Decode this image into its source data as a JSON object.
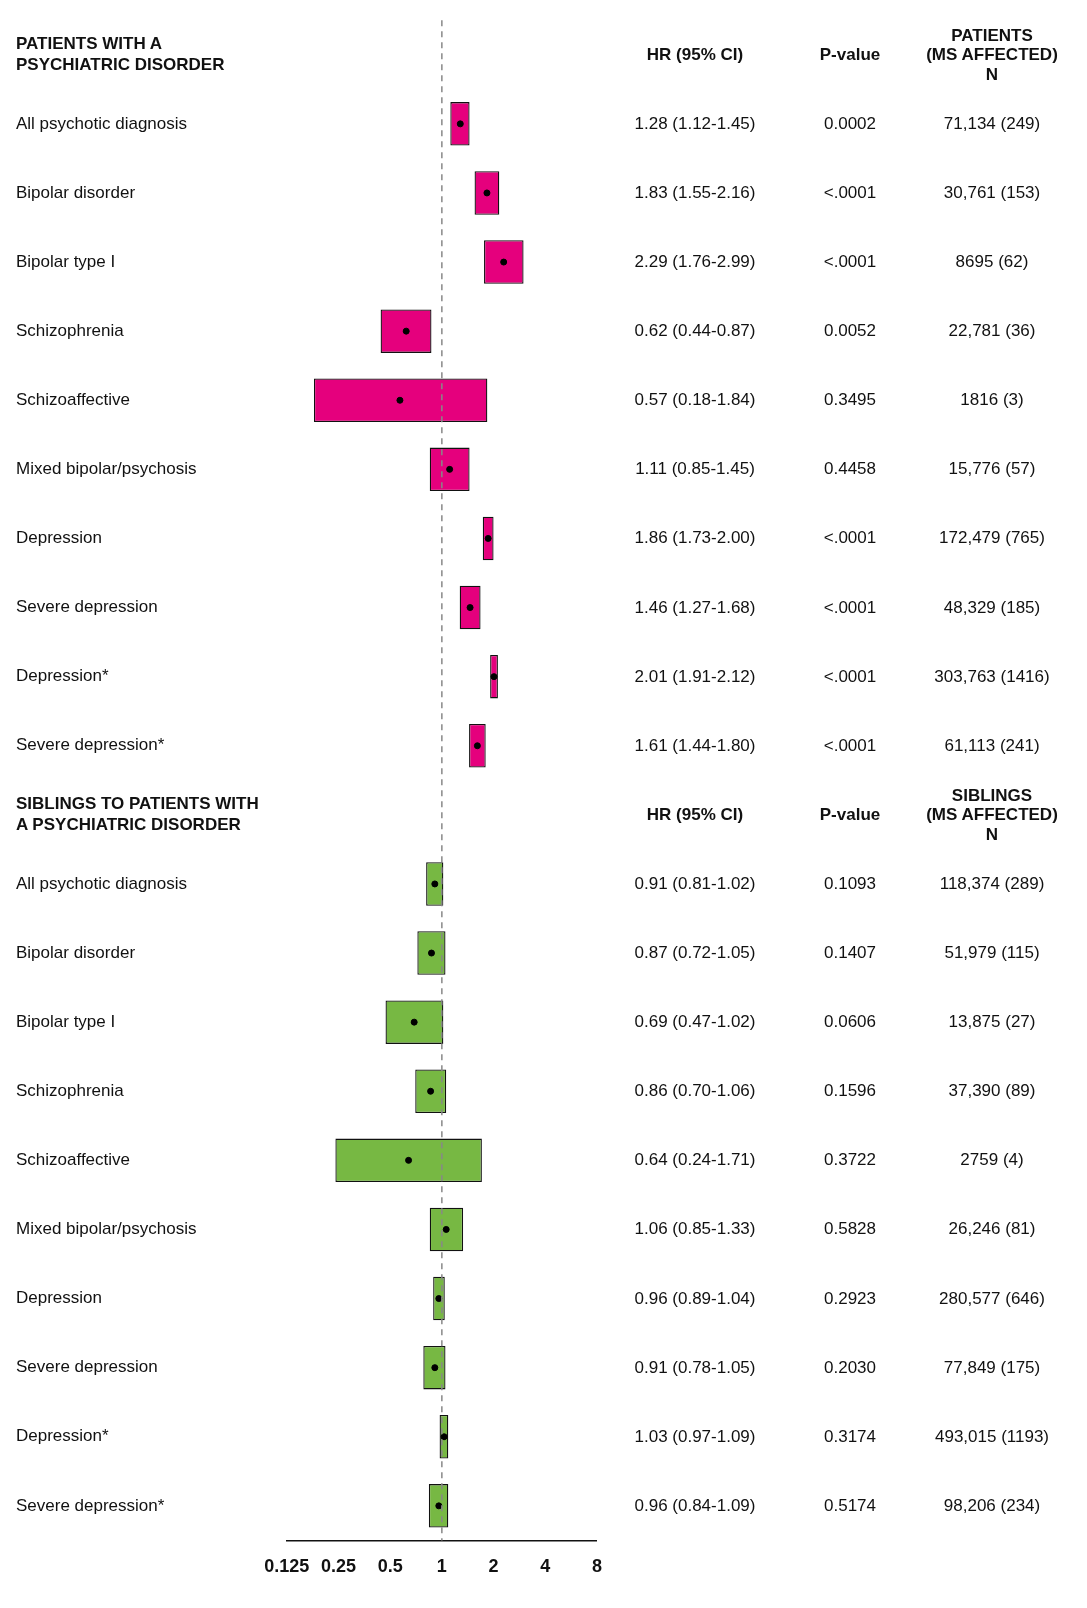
{
  "chart_data": [
    {
      "type": "bar",
      "orientation": "horizontal",
      "log": "x",
      "categories": [
        "PATIENTS WITH A PSYCHIATRIC DISORDER",
        "All psychotic diagnosis",
        "Bipolar disorder",
        "Bipolar type I",
        "Schizophrenia",
        "Schizoaffective",
        "Mixed bipolar/psychosis",
        "Depression",
        "Severe depression",
        "Depression*",
        "Severe depression*",
        "SIBLINGS TO PATIENTS WITH A PSYCHIATRIC DISORDER",
        "All psychotic diagnosis",
        "Bipolar disorder",
        "Bipolar type I",
        "Schizophrenia",
        "Schizoaffective",
        "Mixed bipolar/psychosis",
        "Depression",
        "Severe depression",
        "Depression*",
        "Severe depression*"
      ],
      "series": [
        {
          "type": "bar",
          "colors": [
            null,
            "#e5007d",
            "#e5007d",
            "#e5007d",
            "#e5007d",
            "#e5007d",
            "#e5007d",
            "#e5007d",
            "#e5007d",
            "#e5007d",
            "#e5007d",
            null,
            "#77b843",
            "#77b843",
            "#77b843",
            "#77b843",
            "#77b843",
            "#77b843",
            "#77b843",
            "#77b843",
            "#77b843",
            "#77b843"
          ],
          "base": [
            null,
            1.12,
            1.55,
            1.76,
            0.44,
            0.18,
            0.85,
            1.73,
            1.27,
            1.91,
            1.44,
            null,
            0.81,
            0.72,
            0.47,
            0.7,
            0.24,
            0.85,
            0.89,
            0.78,
            0.97,
            0.84
          ],
          "values": [
            null,
            0.33,
            0.61,
            1.23,
            0.43,
            1.66,
            0.6,
            0.27,
            0.41,
            0.21,
            0.36,
            null,
            0.21,
            0.33,
            0.55,
            0.36,
            1.47,
            0.48,
            0.15,
            0.27,
            0.12,
            0.25
          ]
        },
        {
          "type": "scatter",
          "color": "#000000",
          "marker": "circle",
          "values": [
            null,
            1.28,
            1.83,
            2.29,
            0.62,
            0.57,
            1.11,
            1.86,
            1.46,
            2.01,
            1.61,
            null,
            0.91,
            0.87,
            0.69,
            0.86,
            0.64,
            1.06,
            0.96,
            0.91,
            1.03,
            0.96
          ]
        }
      ],
      "xlim": [
        0.125,
        8
      ],
      "xticks": [
        0.125,
        0.25,
        0.5,
        1,
        2,
        4,
        8
      ],
      "grid": false,
      "legend": false,
      "ref_lines": [
        {
          "axis": "x",
          "value": 1,
          "color": "#888888",
          "line_style": "dashed"
        }
      ]
    },
    {
      "type": "other",
      "cell_labels": [
        [
          "HR (95% CI)",
          "P-value",
          "PATIENTS\n(MS AFFECTED)\nN"
        ],
        [
          "1.28 (1.12-1.45)",
          "0.0002",
          "71,134 (249)"
        ],
        [
          "1.83 (1.55-2.16)",
          "<.0001",
          "30,761 (153)"
        ],
        [
          "2.29 (1.76-2.99)",
          "<.0001",
          "8695 (62)"
        ],
        [
          "0.62 (0.44-0.87)",
          "0.0052",
          "22,781 (36)"
        ],
        [
          "0.57 (0.18-1.84)",
          "0.3495",
          "1816 (3)"
        ],
        [
          "1.11 (0.85-1.45)",
          "0.4458",
          "15,776 (57)"
        ],
        [
          "1.86 (1.73-2.00)",
          "<.0001",
          "172,479 (765)"
        ],
        [
          "1.46 (1.27-1.68)",
          "<.0001",
          "48,329 (185)"
        ],
        [
          "2.01 (1.91-2.12)",
          "<.0001",
          "303,763 (1416)"
        ],
        [
          "1.61 (1.44-1.80)",
          "<.0001",
          "61,113 (241)"
        ],
        [
          "HR (95% CI)",
          "P-value",
          "SIBLINGS\n(MS AFFECTED)\nN"
        ],
        [
          "0.91 (0.81-1.02)",
          "0.1093",
          "118,374 (289)"
        ],
        [
          "0.87 (0.72-1.05)",
          "0.1407",
          "51,979 (115)"
        ],
        [
          "0.69 (0.47-1.02)",
          "0.0606",
          "13,875 (27)"
        ],
        [
          "0.86 (0.70-1.06)",
          "0.1596",
          "37,390 (89)"
        ],
        [
          "0.64 (0.24-1.71)",
          "0.3722",
          "2759 (4)"
        ],
        [
          "1.06 (0.85-1.33)",
          "0.5828",
          "26,246 (81)"
        ],
        [
          "0.96 (0.89-1.04)",
          "0.2923",
          "280,577 (646)"
        ],
        [
          "0.91 (0.78-1.05)",
          "0.2030",
          "77,849 (175)"
        ],
        [
          "1.03 (0.97-1.09)",
          "0.3174",
          "493,015 (1193)"
        ],
        [
          "0.96 (0.84-1.09)",
          "0.5174",
          "98,206 (234)"
        ]
      ]
    }
  ]
}
